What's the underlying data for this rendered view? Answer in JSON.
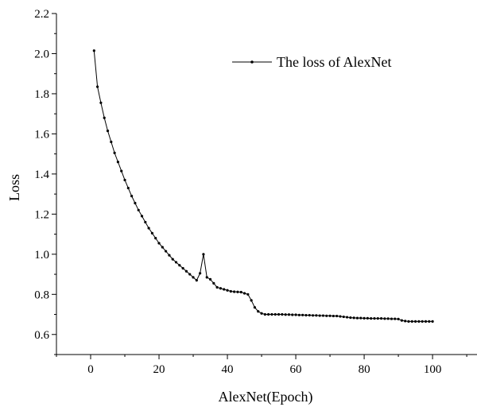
{
  "chart_data": {
    "type": "line",
    "title": "",
    "xlabel": "AlexNet(Epoch)",
    "ylabel": "Loss",
    "xlim": [
      -10,
      113
    ],
    "ylim": [
      0.5,
      2.2
    ],
    "x_ticks": [
      "0",
      "20",
      "40",
      "60",
      "80",
      "100"
    ],
    "x_tick_values": [
      0,
      20,
      40,
      60,
      80,
      100
    ],
    "y_ticks": [
      "0.6",
      "0.8",
      "1.0",
      "1.2",
      "1.4",
      "1.6",
      "1.8",
      "2.0",
      "2.2"
    ],
    "y_tick_values": [
      0.6,
      0.8,
      1.0,
      1.2,
      1.4,
      1.6,
      1.8,
      2.0,
      2.2
    ],
    "grid": false,
    "legend_position": "top-right",
    "series": [
      {
        "name": "The loss of AlexNet",
        "color": "#000000",
        "marker": "dot",
        "x": [
          1,
          2,
          3,
          4,
          5,
          6,
          7,
          8,
          9,
          10,
          11,
          12,
          13,
          14,
          15,
          16,
          17,
          18,
          19,
          20,
          21,
          22,
          23,
          24,
          25,
          26,
          27,
          28,
          29,
          30,
          31,
          32,
          33,
          34,
          35,
          36,
          37,
          38,
          39,
          40,
          41,
          42,
          43,
          44,
          45,
          46,
          47,
          48,
          49,
          50,
          51,
          52,
          53,
          54,
          55,
          56,
          57,
          58,
          59,
          60,
          61,
          62,
          63,
          64,
          65,
          66,
          67,
          68,
          69,
          70,
          71,
          72,
          73,
          74,
          75,
          76,
          77,
          78,
          79,
          80,
          81,
          82,
          83,
          84,
          85,
          86,
          87,
          88,
          89,
          90,
          91,
          92,
          93,
          94,
          95,
          96,
          97,
          98,
          99,
          100
        ],
        "values": [
          2.015,
          1.835,
          1.755,
          1.68,
          1.615,
          1.56,
          1.505,
          1.46,
          1.415,
          1.37,
          1.33,
          1.29,
          1.255,
          1.22,
          1.19,
          1.16,
          1.13,
          1.105,
          1.08,
          1.055,
          1.035,
          1.015,
          0.995,
          0.975,
          0.96,
          0.945,
          0.93,
          0.915,
          0.9,
          0.885,
          0.87,
          0.905,
          1.0,
          0.885,
          0.875,
          0.855,
          0.835,
          0.83,
          0.825,
          0.82,
          0.815,
          0.813,
          0.812,
          0.811,
          0.805,
          0.8,
          0.77,
          0.735,
          0.715,
          0.705,
          0.7,
          0.7,
          0.7,
          0.7,
          0.7,
          0.7,
          0.699,
          0.699,
          0.698,
          0.698,
          0.697,
          0.697,
          0.696,
          0.696,
          0.695,
          0.695,
          0.694,
          0.694,
          0.693,
          0.693,
          0.692,
          0.692,
          0.69,
          0.688,
          0.686,
          0.684,
          0.683,
          0.682,
          0.682,
          0.681,
          0.681,
          0.68,
          0.68,
          0.68,
          0.68,
          0.679,
          0.679,
          0.678,
          0.678,
          0.677,
          0.67,
          0.667,
          0.665,
          0.665,
          0.665,
          0.665,
          0.665,
          0.665,
          0.665,
          0.665
        ]
      }
    ]
  }
}
